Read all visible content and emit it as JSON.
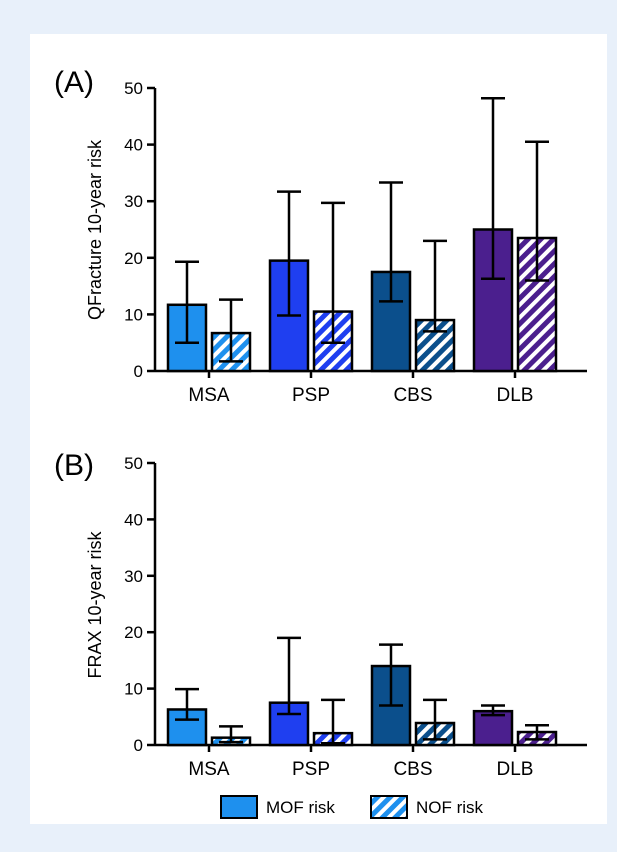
{
  "chart_data": [
    {
      "type": "bar",
      "panel_label": "(A)",
      "ylabel": "QFracture 10-year risk",
      "ylim": [
        0,
        50
      ],
      "yticks": [
        0,
        10,
        20,
        30,
        40,
        50
      ],
      "categories": [
        "MSA",
        "PSP",
        "CBS",
        "DLB"
      ],
      "series": [
        {
          "name": "MOF risk",
          "values": [
            11.7,
            19.5,
            17.5,
            25.0
          ],
          "error_low": [
            5.0,
            9.8,
            12.3,
            16.3
          ],
          "error_high": [
            19.3,
            31.7,
            33.3,
            48.2
          ]
        },
        {
          "name": "NOF risk",
          "values": [
            6.7,
            10.5,
            9.0,
            23.5
          ],
          "error_low": [
            1.7,
            5.0,
            7.0,
            16.0
          ],
          "error_high": [
            12.6,
            29.7,
            23.0,
            40.5
          ]
        }
      ]
    },
    {
      "type": "bar",
      "panel_label": "(B)",
      "ylabel": "FRAX 10-year risk",
      "ylim": [
        0,
        50
      ],
      "yticks": [
        0,
        10,
        20,
        30,
        40,
        50
      ],
      "categories": [
        "MSA",
        "PSP",
        "CBS",
        "DLB"
      ],
      "series": [
        {
          "name": "MOF risk",
          "values": [
            6.3,
            7.5,
            14.0,
            6.0
          ],
          "error_low": [
            4.5,
            5.5,
            7.0,
            5.3
          ],
          "error_high": [
            9.9,
            19.0,
            17.8,
            7.0
          ]
        },
        {
          "name": "NOF risk",
          "values": [
            1.3,
            2.1,
            3.9,
            2.3
          ],
          "error_low": [
            0.5,
            0.3,
            1.0,
            1.0
          ],
          "error_high": [
            3.3,
            8.0,
            8.0,
            3.5
          ]
        }
      ]
    }
  ],
  "colors": {
    "MSA": "#1e90ee",
    "PSP": "#1f3ff0",
    "CBS": "#0b4f8c",
    "DLB": "#4b1f8e"
  },
  "legend": {
    "items": [
      "MOF risk",
      "NOF risk"
    ]
  }
}
